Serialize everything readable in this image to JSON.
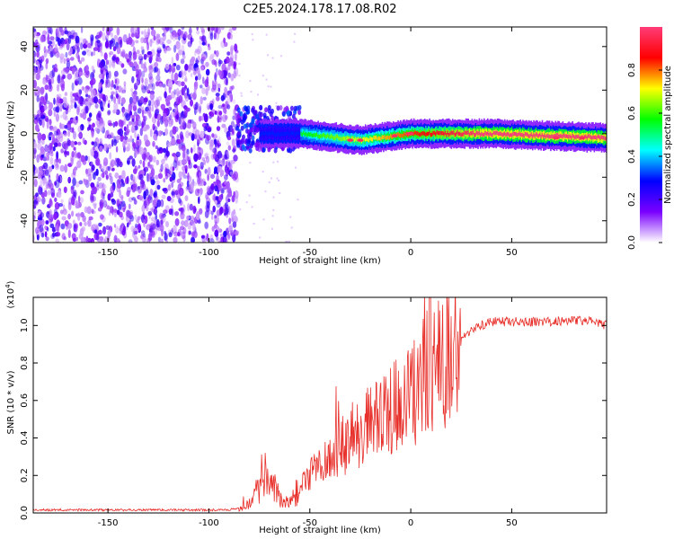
{
  "title": "C2E5.2024.178.17.08.R02",
  "chart_data": [
    {
      "type": "heatmap",
      "xlabel": "Height of straight line (km)",
      "ylabel": "Frequency (Hz)",
      "xlim": [
        -187,
        97
      ],
      "ylim": [
        -50,
        49
      ],
      "xticks": [
        -150,
        -100,
        -50,
        0,
        50
      ],
      "yticks": [
        -40,
        -20,
        0,
        20,
        40
      ],
      "colorbar": {
        "label": "Normalized spectral amplitude",
        "range": [
          0,
          1
        ],
        "ticks": [
          "0.0",
          "0.2",
          "0.4",
          "0.6",
          "0.8"
        ],
        "tick_values": [
          0,
          0.2,
          0.4,
          0.6,
          0.8
        ],
        "colors": [
          "#ffffff",
          "#7a00ff",
          "#0000ff",
          "#00ffff",
          "#00ff00",
          "#ffff00",
          "#ff0000",
          "#ff3c78"
        ]
      },
      "regions": [
        {
          "name": "noise",
          "x_range": [
            -187,
            -86
          ],
          "freq_range": [
            -50,
            49
          ],
          "amplitude_range": [
            0.0,
            0.12
          ]
        },
        {
          "name": "onset",
          "x_range": [
            -86,
            -55
          ],
          "freq_range": [
            -8,
            12
          ],
          "amplitude_range": [
            0.1,
            0.35
          ]
        },
        {
          "name": "signal",
          "x_range": [
            -55,
            97
          ],
          "center_freq": [
            [
              -55,
              0
            ],
            [
              -25,
              -3
            ],
            [
              0,
              0
            ],
            [
              40,
              0
            ],
            [
              97,
              -2
            ]
          ],
          "amplitude_range": [
            0.5,
            1.0
          ]
        }
      ]
    },
    {
      "type": "line",
      "xlabel": "Height of straight line (km)",
      "ylabel": "SNR (10 * v/v)",
      "y_scale_label": "(x10",
      "y_scale_exp": "4",
      "y_scale_close": ")",
      "xlim": [
        -187,
        97
      ],
      "ylim": [
        0,
        1.15
      ],
      "xticks": [
        -150,
        -100,
        -50,
        0,
        50
      ],
      "yticks": [
        "0.0",
        "0.2",
        "0.4",
        "0.6",
        "0.8",
        "1.0"
      ],
      "ytick_values": [
        0,
        0.2,
        0.4,
        0.6,
        0.8,
        1.0
      ],
      "color": "#e8302b",
      "series": [
        {
          "name": "SNR",
          "x": [
            -187,
            -160,
            -130,
            -100,
            -90,
            -82,
            -76,
            -72,
            -68,
            -65,
            -60,
            -55,
            -50,
            -45,
            -40,
            -35,
            -30,
            -25,
            -20,
            -15,
            -10,
            -5,
            0,
            5,
            10,
            15,
            20,
            25,
            30,
            35,
            40,
            50,
            60,
            70,
            80,
            90,
            97
          ],
          "y": [
            0.01,
            0.01,
            0.01,
            0.01,
            0.01,
            0.03,
            0.1,
            0.2,
            0.14,
            0.08,
            0.05,
            0.12,
            0.2,
            0.25,
            0.3,
            0.35,
            0.38,
            0.42,
            0.47,
            0.5,
            0.55,
            0.6,
            0.62,
            0.7,
            0.78,
            0.8,
            0.85,
            0.93,
            0.98,
            1.0,
            1.02,
            1.02,
            1.02,
            1.02,
            1.03,
            1.02,
            1.0
          ]
        }
      ]
    }
  ]
}
